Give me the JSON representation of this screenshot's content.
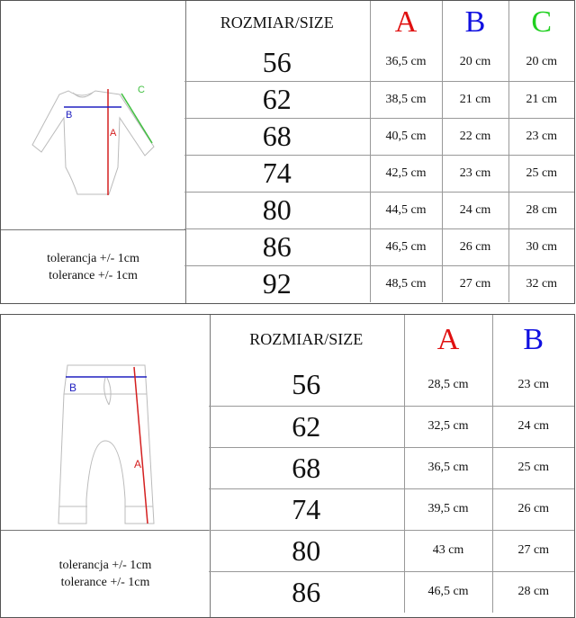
{
  "bodysuit_chart": {
    "header": {
      "size_label": "ROZMIAR/SIZE",
      "col_a": "A",
      "col_b": "B",
      "col_c": "C"
    },
    "rows": [
      {
        "size": "56",
        "a": "36,5 cm",
        "b": "20 cm",
        "c": "20 cm"
      },
      {
        "size": "62",
        "a": "38,5 cm",
        "b": "21 cm",
        "c": "21 cm"
      },
      {
        "size": "68",
        "a": "40,5 cm",
        "b": "22 cm",
        "c": "23 cm"
      },
      {
        "size": "74",
        "a": "42,5 cm",
        "b": "23 cm",
        "c": "25 cm"
      },
      {
        "size": "80",
        "a": "44,5 cm",
        "b": "24 cm",
        "c": "28 cm"
      },
      {
        "size": "86",
        "a": "46,5 cm",
        "b": "26 cm",
        "c": "30 cm"
      },
      {
        "size": "92",
        "a": "48,5 cm",
        "b": "27 cm",
        "c": "32 cm"
      }
    ],
    "diagram_labels": {
      "a": "A",
      "b": "B",
      "c": "C"
    },
    "tolerance_pl": "tolerancja +/- 1cm",
    "tolerance_en": "tolerance +/- 1cm"
  },
  "pants_chart": {
    "header": {
      "size_label": "ROZMIAR/SIZE",
      "col_a": "A",
      "col_b": "B"
    },
    "rows": [
      {
        "size": "56",
        "a": "28,5 cm",
        "b": "23 cm"
      },
      {
        "size": "62",
        "a": "32,5 cm",
        "b": "24 cm"
      },
      {
        "size": "68",
        "a": "36,5 cm",
        "b": "25 cm"
      },
      {
        "size": "74",
        "a": "39,5 cm",
        "b": "26 cm"
      },
      {
        "size": "80",
        "a": "43 cm",
        "b": "27 cm"
      },
      {
        "size": "86",
        "a": "46,5 cm",
        "b": "28 cm"
      }
    ],
    "diagram_labels": {
      "a": "A",
      "b": "B"
    },
    "tolerance_pl": "tolerancja +/- 1cm",
    "tolerance_en": "tolerance +/- 1cm"
  },
  "colors": {
    "a": "#e01010",
    "b": "#1010e0",
    "c": "#20d020"
  }
}
